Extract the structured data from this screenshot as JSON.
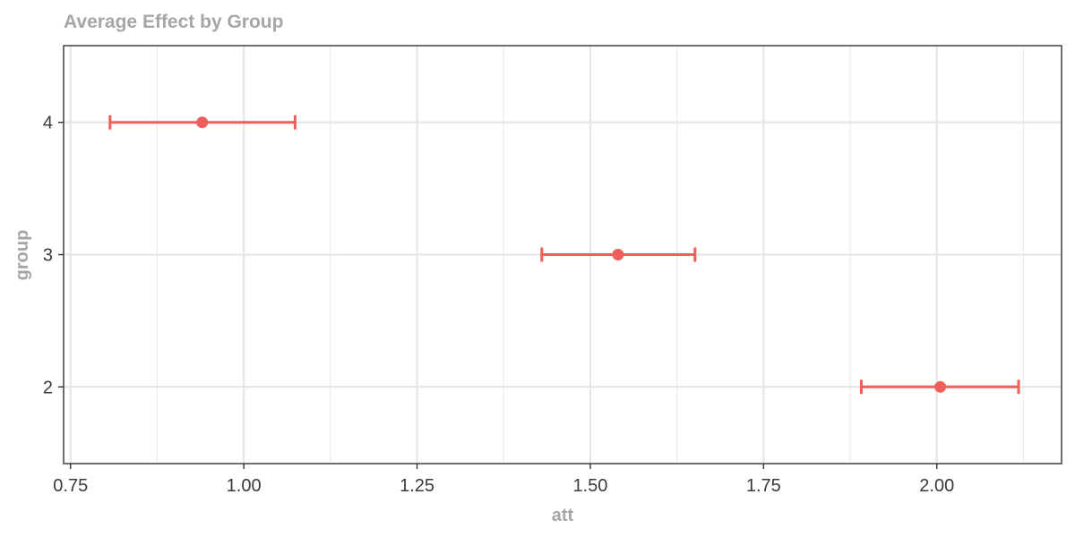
{
  "chart_data": {
    "type": "errorbar",
    "title": "Average Effect by Group",
    "xlabel": "att",
    "ylabel": "group",
    "xlim": [
      0.74,
      2.18
    ],
    "ylim": [
      1.42,
      4.58
    ],
    "x_ticks": [
      0.75,
      1.0,
      1.25,
      1.5,
      1.75,
      2.0
    ],
    "x_tick_labels": [
      "0.75",
      "1.00",
      "1.25",
      "1.50",
      "1.75",
      "2.00"
    ],
    "x_minor_ticks": [
      0.875,
      1.125,
      1.375,
      1.625,
      1.875,
      2.125
    ],
    "y_ticks": [
      2,
      3,
      4
    ],
    "y_tick_labels": [
      "2",
      "3",
      "4"
    ],
    "grid": true,
    "color": "#ee5f5b",
    "points": [
      {
        "group": "4",
        "y": 4,
        "att": 0.94,
        "lower": 0.807,
        "upper": 1.074
      },
      {
        "group": "3",
        "y": 3,
        "att": 1.54,
        "lower": 1.43,
        "upper": 1.651
      },
      {
        "group": "2",
        "y": 2,
        "att": 2.005,
        "lower": 1.891,
        "upper": 2.118
      }
    ]
  }
}
